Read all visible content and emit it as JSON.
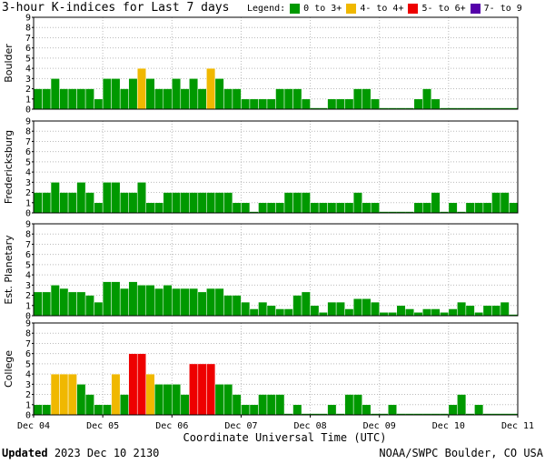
{
  "header": {
    "title": "3-hour K-indices for Last 7 days",
    "legend_label": "Legend:",
    "legend": [
      {
        "label": "0 to 3+",
        "color": "#009900"
      },
      {
        "label": "4- to 4+",
        "color": "#f0b800"
      },
      {
        "label": "5- to 6+",
        "color": "#ee0000"
      },
      {
        "label": "7- to 9",
        "color": "#5500aa"
      }
    ]
  },
  "footer": {
    "updated_label": "Updated",
    "updated_value": "2023 Dec 10 2130",
    "credit": "NOAA/SWPC Boulder, CO USA"
  },
  "chart_data": {
    "type": "bar",
    "xlabel": "Coordinate Universal Time (UTC)",
    "x_ticks": [
      "Dec 04",
      "Dec 05",
      "Dec 06",
      "Dec 07",
      "Dec 08",
      "Dec 09",
      "Dec 10",
      "Dec 11"
    ],
    "y_ticks": [
      0,
      1,
      2,
      3,
      4,
      5,
      6,
      7,
      8,
      9
    ],
    "ylim": [
      0,
      9
    ],
    "grid": true,
    "slots_per_day": 8,
    "total_slots": 56,
    "thresholds": {
      "green_max": 3.67,
      "yellow_max": 4.67,
      "red_max": 6.67
    },
    "colors": {
      "green": "#009900",
      "yellow": "#f0b800",
      "red": "#ee0000",
      "purple": "#5500aa"
    },
    "panels": [
      {
        "name": "Boulder",
        "values": [
          2,
          2,
          3,
          2,
          2,
          2,
          2,
          1,
          3,
          3,
          2,
          3,
          4,
          3,
          2,
          2,
          3,
          2,
          3,
          2,
          4,
          3,
          2,
          2,
          1,
          1,
          1,
          1,
          2,
          2,
          2,
          1,
          0,
          0,
          1,
          1,
          1,
          2,
          2,
          1,
          0,
          0,
          0,
          0,
          1,
          2,
          1,
          0,
          0,
          0,
          0,
          0,
          0,
          0,
          0,
          0
        ]
      },
      {
        "name": "Fredericksburg",
        "values": [
          2,
          2,
          3,
          2,
          2,
          3,
          2,
          1,
          3,
          3,
          2,
          2,
          3,
          1,
          1,
          2,
          2,
          2,
          2,
          2,
          2,
          2,
          2,
          1,
          1,
          0,
          1,
          1,
          1,
          2,
          2,
          2,
          1,
          1,
          1,
          1,
          1,
          2,
          1,
          1,
          0,
          0,
          0,
          0,
          1,
          1,
          2,
          0,
          1,
          0,
          1,
          1,
          1,
          2,
          2,
          1
        ]
      },
      {
        "name": "Est. Planetary",
        "values": [
          2.33,
          2.33,
          3,
          2.67,
          2.33,
          2.33,
          2,
          1.33,
          3.33,
          3.33,
          2.67,
          3.33,
          3,
          3,
          2.67,
          3,
          2.67,
          2.67,
          2.67,
          2.33,
          2.67,
          2.67,
          2,
          2,
          1.33,
          0.67,
          1.33,
          1,
          0.67,
          0.67,
          2,
          2.33,
          1,
          0.33,
          1.33,
          1.33,
          0.67,
          1.67,
          1.67,
          1.33,
          0.33,
          0.33,
          1,
          0.67,
          0.33,
          0.67,
          0.67,
          0.33,
          0.67,
          1.33,
          1,
          0.33,
          1,
          1,
          1.33,
          0
        ]
      },
      {
        "name": "College",
        "values": [
          1,
          1,
          4,
          4,
          4,
          3,
          2,
          1,
          1,
          4,
          2,
          6,
          6,
          4,
          3,
          3,
          3,
          2,
          5,
          5,
          5,
          3,
          3,
          2,
          1,
          1,
          2,
          2,
          2,
          0,
          1,
          0,
          0,
          0,
          1,
          0,
          2,
          2,
          1,
          0,
          0,
          1,
          0,
          0,
          0,
          0,
          0,
          0,
          1,
          2,
          0,
          1,
          0,
          0,
          0,
          0
        ]
      }
    ]
  }
}
